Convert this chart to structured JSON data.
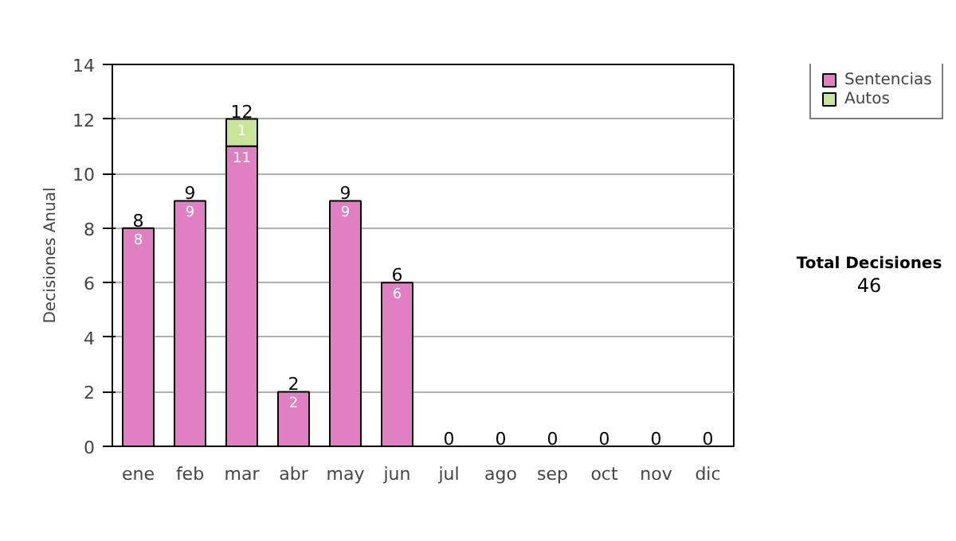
{
  "chart_data": {
    "type": "bar",
    "stacked": true,
    "ylabel": "Decisiones Anual",
    "categories": [
      "ene",
      "feb",
      "mar",
      "abr",
      "may",
      "jun",
      "jul",
      "ago",
      "sep",
      "oct",
      "nov",
      "dic"
    ],
    "series": [
      {
        "name": "Sentencias",
        "color": "#e07fc2",
        "values": [
          8,
          9,
          11,
          2,
          9,
          6,
          0,
          0,
          0,
          0,
          0,
          0
        ],
        "value_labels": [
          "8",
          "9",
          "11",
          "2",
          "9",
          "6",
          null,
          null,
          null,
          null,
          null,
          null
        ]
      },
      {
        "name": "Autos",
        "color": "#c9e59a",
        "values": [
          0,
          0,
          1,
          0,
          0,
          0,
          0,
          0,
          0,
          0,
          0,
          0
        ],
        "value_labels": [
          null,
          null,
          "1",
          null,
          null,
          null,
          null,
          null,
          null,
          null,
          null,
          null
        ]
      }
    ],
    "totals": [
      "8",
      "9",
      "12",
      "2",
      "9",
      "6",
      "0",
      "0",
      "0",
      "0",
      "0",
      "0"
    ],
    "ylim": [
      0,
      14
    ],
    "yticks": [
      0,
      2,
      4,
      6,
      8,
      10,
      12,
      14
    ],
    "grid": "y",
    "legend": "right",
    "annotations": [
      "Total Decisiones",
      "46"
    ]
  }
}
